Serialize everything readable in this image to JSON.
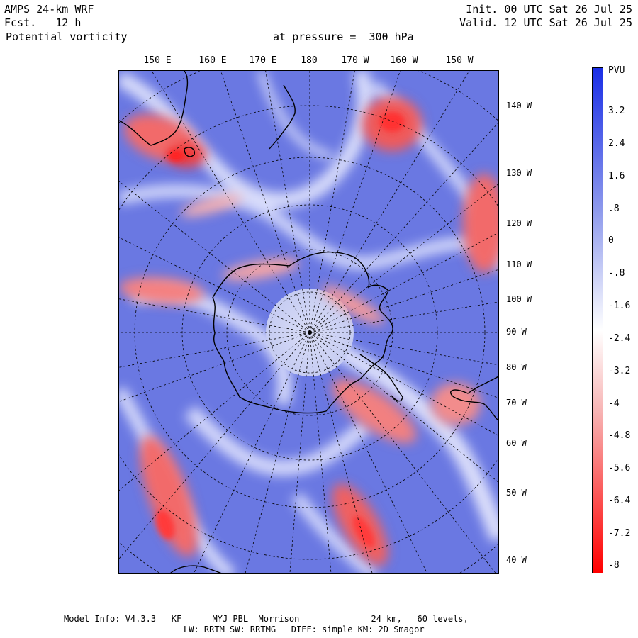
{
  "header": {
    "model_title": "AMPS 24-km WRF",
    "forecast": "Fcst.   12 h",
    "variable": "Potential vorticity",
    "level": "at pressure =  300 hPa",
    "init": "Init. 00 UTC Sat 26 Jul 25",
    "valid": "Valid. 12 UTC Sat 26 Jul 25"
  },
  "map": {
    "projection": "polar stereographic (south)",
    "top_lon_labels": [
      "150 E",
      "160 E",
      "170 E",
      "180",
      "170 W",
      "160 W",
      "150 W"
    ],
    "right_lon_labels": [
      "140 W",
      "130 W",
      "120 W",
      "110 W",
      "100 W",
      "90 W",
      "80 W",
      "70 W",
      "60 W",
      "50 W",
      "40 W"
    ]
  },
  "colorbar": {
    "unit": "PVU",
    "labels": [
      "3.2",
      "2.4",
      "1.6",
      ".8",
      "0",
      "-.8",
      "-1.6",
      "-2.4",
      "-3.2",
      "-4",
      "-4.8",
      "-5.6",
      "-6.4",
      "-7.2",
      "-8"
    ],
    "top_color": "#1a2ee6",
    "mid_color": "#ffffff",
    "bottom_color": "#ff0000"
  },
  "footer": {
    "line1": "Model Info: V4.3.3   KF      MYJ PBL  Morrison              24 km,   60 levels,",
    "line2": "LW: RRTM SW: RRTMG   DIFF: simple KM: 2D Smagor"
  }
}
